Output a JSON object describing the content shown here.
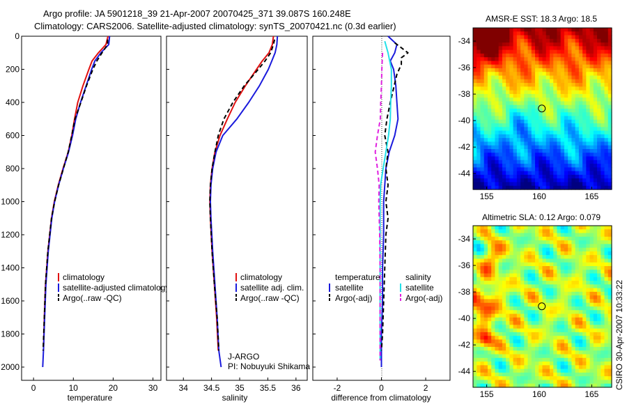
{
  "header": {
    "line1": "Argo profile: JA 5901218_39 21-Apr-2007 20070425_371 39.087S 160.248E",
    "line2": "Climatology: CARS2006. Satellite-adjusted climatology: synTS_20070421.nc (0.3d earlier)"
  },
  "colors": {
    "climatology": "#e01010",
    "satellite": "#1a1adc",
    "argo": "#000000",
    "salinity_satellite": "#22e0e8",
    "salinity_argo": "#e020e0"
  },
  "chart_data": [
    {
      "id": "temperature",
      "type": "line",
      "xlabel": "temperature",
      "xlim": [
        -3,
        32
      ],
      "ylim": [
        0,
        2080
      ],
      "xticks": [
        0,
        10,
        20,
        30
      ],
      "yticks": [
        0,
        200,
        400,
        600,
        800,
        1000,
        1200,
        1400,
        1600,
        1800,
        2000
      ],
      "legend": [
        "climatology",
        "satellite-adjusted climatology",
        "Argo(..raw -QC)"
      ],
      "legend_position": "lower-right",
      "series": [
        {
          "name": "climatology",
          "color": "#e01010",
          "dash": "",
          "x": [
            18.7,
            18.2,
            16.3,
            14.7,
            13.9,
            12.4,
            11.1,
            10.3,
            9.6,
            8.7,
            7.4,
            6.2,
            5.2,
            4.5,
            3.6,
            3.0,
            2.7,
            2.5
          ],
          "y": [
            0,
            50,
            100,
            150,
            200,
            300,
            400,
            500,
            600,
            700,
            800,
            900,
            1000,
            1100,
            1300,
            1500,
            1700,
            1900
          ]
        },
        {
          "name": "satellite-adjusted climatology",
          "color": "#1a1adc",
          "dash": "",
          "x": [
            19.1,
            18.9,
            16.9,
            15.4,
            14.6,
            13.2,
            11.8,
            10.6,
            9.8,
            8.8,
            7.5,
            6.3,
            5.3,
            4.6,
            3.7,
            3.1,
            2.8,
            2.5,
            2.3
          ],
          "y": [
            0,
            50,
            100,
            150,
            200,
            300,
            400,
            500,
            600,
            700,
            800,
            900,
            1000,
            1100,
            1300,
            1500,
            1700,
            1900,
            2000
          ]
        },
        {
          "name": "Argo(..raw -QC)",
          "color": "#000000",
          "dash": "6,4",
          "x": [
            18.6,
            18.6,
            17.2,
            15.9,
            14.9,
            13.3,
            11.9,
            10.4,
            9.6,
            8.7,
            7.5,
            6.3,
            5.3,
            4.5,
            3.6,
            3.0,
            2.7,
            2.4
          ],
          "y": [
            20,
            50,
            100,
            150,
            200,
            300,
            400,
            500,
            600,
            700,
            800,
            900,
            1000,
            1100,
            1300,
            1500,
            1700,
            1900
          ]
        }
      ]
    },
    {
      "id": "salinity",
      "type": "line",
      "xlabel": "salinity",
      "xlim": [
        33.7,
        36.2
      ],
      "ylim": [
        0,
        2080
      ],
      "xticks": [
        34,
        34.5,
        35,
        35.5,
        36
      ],
      "yticks": [
        0,
        200,
        400,
        600,
        800,
        1000,
        1200,
        1400,
        1600,
        1800,
        2000
      ],
      "legend": [
        "climatology",
        "satellite adj. clim.",
        "Argo(..raw -QC)"
      ],
      "legend_position": "lower-right",
      "annotation_lines": [
        "J-ARGO",
        "PI: Nobuyuki Shikama"
      ],
      "series": [
        {
          "name": "climatology",
          "color": "#e01010",
          "dash": "",
          "x": [
            35.6,
            35.58,
            35.52,
            35.4,
            35.3,
            35.1,
            34.92,
            34.78,
            34.65,
            34.56,
            34.51,
            34.48,
            34.47,
            34.48,
            34.51,
            34.55,
            34.59,
            34.62
          ],
          "y": [
            0,
            50,
            100,
            150,
            200,
            300,
            400,
            500,
            600,
            700,
            800,
            900,
            1000,
            1100,
            1300,
            1500,
            1700,
            1900
          ]
        },
        {
          "name": "satellite adj. clim.",
          "color": "#1a1adc",
          "dash": "",
          "x": [
            35.67,
            35.66,
            35.63,
            35.57,
            35.51,
            35.35,
            35.16,
            34.95,
            34.7,
            34.58,
            34.52,
            34.49,
            34.48,
            34.49,
            34.52,
            34.56,
            34.6,
            34.63,
            34.67
          ],
          "y": [
            0,
            50,
            100,
            150,
            200,
            300,
            400,
            500,
            600,
            700,
            800,
            900,
            1000,
            1100,
            1300,
            1500,
            1700,
            1900,
            2000
          ]
        },
        {
          "name": "Argo(..raw -QC)",
          "color": "#000000",
          "dash": "6,4",
          "x": [
            35.62,
            35.6,
            35.55,
            35.45,
            35.33,
            35.08,
            34.88,
            34.72,
            34.62,
            34.56,
            34.51,
            34.48,
            34.47,
            34.48,
            34.51,
            34.55,
            34.6,
            34.63
          ],
          "y": [
            20,
            50,
            100,
            150,
            200,
            300,
            400,
            500,
            600,
            700,
            800,
            900,
            1000,
            1100,
            1300,
            1500,
            1700,
            1900
          ]
        }
      ]
    },
    {
      "id": "difference",
      "type": "line",
      "xlabel": "difference from climatology",
      "xlim": [
        -3.1,
        3.1
      ],
      "ylim": [
        0,
        2080
      ],
      "xticks": [
        -2,
        0,
        2
      ],
      "yticks": [
        0,
        200,
        400,
        600,
        800,
        1000,
        1200,
        1400,
        1600,
        1800,
        2000
      ],
      "legend_temperature_title": "temperature",
      "legend_salinity_title": "salinity",
      "legend": [
        "satellite",
        "Argo(-adj)",
        "satellite",
        "Argo(-adj)"
      ],
      "legend_position": "lower",
      "series": [
        {
          "name": "temperature satellite",
          "color": "#1a1adc",
          "dash": "",
          "x": [
            0.3,
            0.7,
            0.6,
            0.4,
            0.55,
            0.65,
            0.7,
            0.75,
            0.6,
            0.35,
            0.2,
            0.15,
            0.1,
            0.1,
            0.1,
            0.05,
            0.05,
            0.0,
            0.0,
            0.0
          ],
          "y": [
            0,
            50,
            100,
            150,
            200,
            300,
            400,
            500,
            600,
            700,
            800,
            900,
            1000,
            1100,
            1200,
            1400,
            1600,
            1800,
            1900,
            2000
          ]
        },
        {
          "name": "temperature Argo(-adj)",
          "color": "#000000",
          "dash": "6,4",
          "x": [
            0.6,
            0.9,
            1.2,
            0.9,
            0.9,
            0.7,
            0.4,
            0.25,
            0.15,
            0.3,
            0.2,
            0.3,
            0.2,
            0.3,
            0.2,
            0.15,
            0.1,
            0.05,
            0.0
          ],
          "y": [
            40,
            70,
            100,
            130,
            170,
            230,
            400,
            500,
            600,
            700,
            800,
            900,
            1000,
            1100,
            1200,
            1400,
            1600,
            1800,
            1900
          ]
        },
        {
          "name": "salinity satellite",
          "color": "#22e0e8",
          "dash": "",
          "x": [
            0.15,
            0.3,
            0.45,
            0.45,
            0.42,
            0.4,
            0.32,
            0.2,
            0.08,
            -0.04,
            -0.06,
            -0.06,
            -0.06,
            -0.06,
            -0.06,
            -0.06,
            -0.06
          ],
          "y": [
            30,
            100,
            200,
            300,
            400,
            500,
            600,
            700,
            800,
            900,
            1000,
            1100,
            1200,
            1400,
            1600,
            1800,
            1960
          ]
        },
        {
          "name": "salinity Argo(-adj)",
          "color": "#e020e0",
          "dash": "6,4",
          "x": [
            0.05,
            0.02,
            0.0,
            -0.03,
            -0.05,
            -0.18,
            -0.28,
            -0.18,
            -0.1,
            -0.12,
            -0.08,
            -0.06,
            -0.06,
            -0.06,
            -0.06
          ],
          "y": [
            100,
            200,
            300,
            400,
            500,
            600,
            700,
            800,
            900,
            1000,
            1200,
            1400,
            1600,
            1800,
            1960
          ]
        }
      ]
    },
    {
      "id": "sst_map",
      "type": "heatmap",
      "title": "AMSR-E SST: 18.3 Argo: 18.5",
      "xticks": [
        155,
        160,
        165
      ],
      "yticks": [
        -34,
        -36,
        -38,
        -40,
        -42,
        -44
      ],
      "xlim": [
        153.7,
        166.9
      ],
      "ylim": [
        -45.2,
        -33.0
      ],
      "marker": {
        "lon": 160.248,
        "lat": -39.087
      }
    },
    {
      "id": "sla_map",
      "type": "heatmap",
      "title": "Altimetric SLA: 0.12 Argo: 0.079",
      "xticks": [
        155,
        160,
        165
      ],
      "yticks": [
        -34,
        -36,
        -38,
        -40,
        -42,
        -44
      ],
      "xlim": [
        153.7,
        166.9
      ],
      "ylim": [
        -45.2,
        -33.0
      ],
      "marker": {
        "lon": 160.248,
        "lat": -39.087
      }
    }
  ],
  "footer": {
    "stamp": "CSIRO 30-Apr-2007 10:33:22"
  }
}
